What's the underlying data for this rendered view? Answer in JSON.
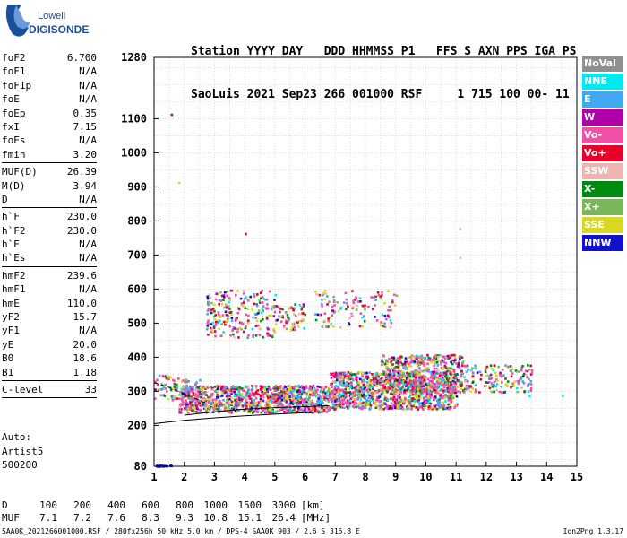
{
  "logo": {
    "line1": "Lowell",
    "line2": "DIGISONDE",
    "color": "#1a4f9c"
  },
  "header": {
    "labels": "Station YYYY DAY   DDD HHMMSS P1   FFS S AXN PPS IGA PS",
    "values": "SaoLuis 2021 Sep23 266 001000 RSF     1 715 100 00- 11"
  },
  "params_group1": [
    {
      "name": "foF2",
      "value": "6.700"
    },
    {
      "name": "foF1",
      "value": "N/A"
    },
    {
      "name": "foF1p",
      "value": "N/A"
    },
    {
      "name": "foE",
      "value": "N/A"
    },
    {
      "name": "foEp",
      "value": "0.35"
    },
    {
      "name": "fxI",
      "value": "7.15"
    },
    {
      "name": "foEs",
      "value": "N/A"
    },
    {
      "name": "fmin",
      "value": "3.20"
    }
  ],
  "params_group2": [
    {
      "name": "MUF(D)",
      "value": "26.39"
    },
    {
      "name": "M(D)",
      "value": "3.94"
    },
    {
      "name": "D",
      "value": "N/A"
    }
  ],
  "params_group3": [
    {
      "name": "h`F",
      "value": "230.0"
    },
    {
      "name": "h`F2",
      "value": "230.0"
    },
    {
      "name": "h`E",
      "value": "N/A"
    },
    {
      "name": "h`Es",
      "value": "N/A"
    }
  ],
  "params_group4": [
    {
      "name": "hmF2",
      "value": "239.6"
    },
    {
      "name": "hmF1",
      "value": "N/A"
    },
    {
      "name": "hmE",
      "value": "110.0"
    },
    {
      "name": "yF2",
      "value": "15.7"
    },
    {
      "name": "yF1",
      "value": "N/A"
    },
    {
      "name": "yE",
      "value": "20.0"
    },
    {
      "name": "B0",
      "value": "18.6"
    },
    {
      "name": "B1",
      "value": "1.18"
    }
  ],
  "clevel": {
    "name": "C-level",
    "value": "33"
  },
  "auto": {
    "line1": "Auto:",
    "line2": "Artist5",
    "line3": "500200"
  },
  "legend": [
    {
      "label": "NoVal",
      "color": "#909090"
    },
    {
      "label": "NNE",
      "color": "#00e8f0"
    },
    {
      "label": "E",
      "color": "#40a8f0"
    },
    {
      "label": "W",
      "color": "#b000a8"
    },
    {
      "label": "Vo-",
      "color": "#f050a8"
    },
    {
      "label": "Vo+",
      "color": "#e8002a"
    },
    {
      "label": "SSW",
      "color": "#f0b4b0"
    },
    {
      "label": "X-",
      "color": "#008a10"
    },
    {
      "label": "X+",
      "color": "#78b858"
    },
    {
      "label": "SSE",
      "color": "#d8d820"
    },
    {
      "label": "NNW",
      "color": "#1010d0"
    }
  ],
  "muf_table": {
    "d_label": "D",
    "d_values": [
      "100",
      "200",
      "400",
      "600",
      "800",
      "1000",
      "1500",
      "3000"
    ],
    "d_unit": "[km]",
    "muf_label": "MUF",
    "muf_values": [
      "7.1",
      "7.2",
      "7.6",
      "8.3",
      "9.3",
      "10.8",
      "15.1",
      "26.4"
    ],
    "muf_unit": "[MHz]"
  },
  "footer": {
    "left": "SAA0K_2021266001000.RSF / 280fx256h 50 kHz 5.0 km / DPS-4 SAA0K 903 / 2.6 S 315.8 E",
    "right": "Ion2Png 1.3.17"
  },
  "chart_data": {
    "type": "scatter",
    "xlim": [
      1,
      15
    ],
    "ylim": [
      80,
      1280
    ],
    "x_ticks": [
      1,
      2,
      3,
      4,
      5,
      6,
      7,
      8,
      9,
      10,
      11,
      12,
      13,
      14,
      15
    ],
    "y_ticks": [
      80,
      200,
      300,
      400,
      500,
      600,
      700,
      800,
      900,
      1000,
      1100,
      1280
    ],
    "grid": true,
    "clusters": [
      {
        "name": "F-trace",
        "xmin": 1.8,
        "xmax": 6.8,
        "ymin": 240,
        "ymax": 320,
        "density": 1100
      },
      {
        "name": "F-trace-dense",
        "xmin": 6.8,
        "xmax": 11.0,
        "ymin": 250,
        "ymax": 360,
        "density": 1100
      },
      {
        "name": "F-trace-upper",
        "xmin": 8.5,
        "xmax": 11.2,
        "ymin": 300,
        "ymax": 410,
        "density": 500
      },
      {
        "name": "F-trace-tail",
        "xmin": 11.2,
        "xmax": 13.5,
        "ymin": 300,
        "ymax": 380,
        "density": 160
      },
      {
        "name": "second-hop-left",
        "xmin": 2.7,
        "xmax": 5.0,
        "ymin": 460,
        "ymax": 600,
        "density": 220
      },
      {
        "name": "second-hop-mid",
        "xmin": 5.0,
        "xmax": 6.0,
        "ymin": 480,
        "ymax": 560,
        "density": 60
      },
      {
        "name": "second-hop-right",
        "xmin": 6.3,
        "xmax": 9.0,
        "ymin": 490,
        "ymax": 600,
        "density": 120
      },
      {
        "name": "scatter-low",
        "xmin": 1.0,
        "xmax": 2.5,
        "ymin": 270,
        "ymax": 350,
        "density": 80
      },
      {
        "name": "bottom-blue",
        "xmin": 1.0,
        "xmax": 1.6,
        "ymin": 82,
        "ymax": 86,
        "density": 15
      }
    ],
    "isolated_points": [
      {
        "x": 1.55,
        "y": 1115,
        "color": "#e8002a"
      },
      {
        "x": 1.8,
        "y": 915,
        "color": "#d8d820"
      },
      {
        "x": 11.1,
        "y": 780,
        "color": "#f0b4b0"
      },
      {
        "x": 11.1,
        "y": 695,
        "color": "#f0b4b0"
      },
      {
        "x": 4.0,
        "y": 765,
        "color": "#e8002a"
      },
      {
        "x": 14.5,
        "y": 290,
        "color": "#00e8f0"
      },
      {
        "x": 13.4,
        "y": 290,
        "color": "#00e8f0"
      }
    ],
    "curves": [
      {
        "name": "profile-solid",
        "style": "solid",
        "points": [
          [
            1.0,
            205
          ],
          [
            2.0,
            215
          ],
          [
            3.0,
            222
          ],
          [
            4.0,
            228
          ],
          [
            5.0,
            233
          ],
          [
            6.0,
            237
          ],
          [
            6.8,
            240
          ]
        ]
      },
      {
        "name": "profile-dashed",
        "style": "dashed",
        "points": [
          [
            1.0,
            325
          ],
          [
            1.4,
            315
          ],
          [
            1.8,
            300
          ],
          [
            2.2,
            285
          ],
          [
            2.6,
            270
          ],
          [
            3.0,
            258
          ]
        ]
      },
      {
        "name": "trace-overlay",
        "style": "solid",
        "points": [
          [
            2.0,
            230
          ],
          [
            3.0,
            240
          ],
          [
            4.0,
            248
          ],
          [
            5.0,
            252
          ],
          [
            6.0,
            255
          ],
          [
            6.8,
            258
          ]
        ]
      }
    ]
  }
}
